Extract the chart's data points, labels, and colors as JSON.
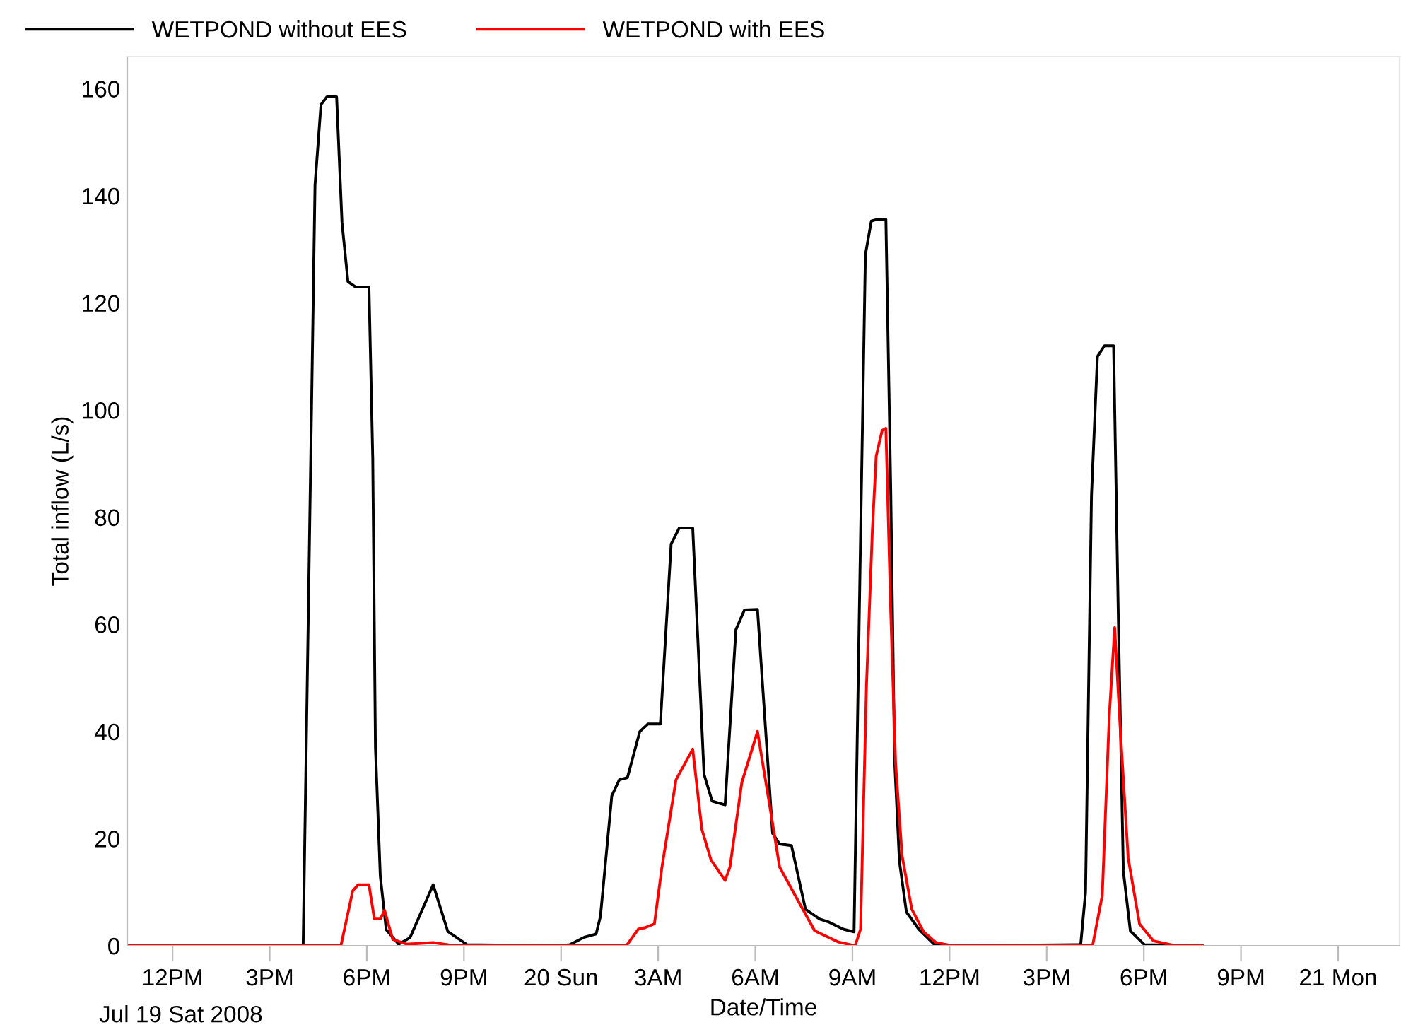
{
  "chart_data": {
    "type": "line",
    "xlabel": "Date/Time",
    "ylabel": "Total inflow (L/s)",
    "xlim": [
      "2008-07-19T10:36",
      "2008-07-21T01:54"
    ],
    "ylim": [
      0,
      166
    ],
    "xticks": [
      {
        "value": "2008-07-19T12:00",
        "label": "12PM"
      },
      {
        "value": "2008-07-19T15:00",
        "label": "3PM"
      },
      {
        "value": "2008-07-19T18:00",
        "label": "6PM"
      },
      {
        "value": "2008-07-19T21:00",
        "label": "9PM"
      },
      {
        "value": "2008-07-20T00:00",
        "label": "20 Sun"
      },
      {
        "value": "2008-07-20T03:00",
        "label": "3AM"
      },
      {
        "value": "2008-07-20T06:00",
        "label": "6AM"
      },
      {
        "value": "2008-07-20T09:00",
        "label": "9AM"
      },
      {
        "value": "2008-07-20T12:00",
        "label": "12PM"
      },
      {
        "value": "2008-07-20T15:00",
        "label": "3PM"
      },
      {
        "value": "2008-07-20T18:00",
        "label": "6PM"
      },
      {
        "value": "2008-07-20T21:00",
        "label": "9PM"
      },
      {
        "value": "2008-07-21T00:00",
        "label": "21 Mon"
      }
    ],
    "yticks": [
      0,
      20,
      40,
      60,
      80,
      100,
      120,
      140,
      160
    ],
    "grid": false,
    "legend": "top",
    "line_style": "solid",
    "marker": "none",
    "annotations": [
      "Jul 19 Sat 2008"
    ],
    "series": [
      {
        "name": "WETPOND without EES",
        "color": "#000000",
        "x": [
          "2008-07-19T10:36",
          "2008-07-19T16:02",
          "2008-07-19T16:24",
          "2008-07-19T16:35",
          "2008-07-19T16:46",
          "2008-07-19T17:04",
          "2008-07-19T17:14",
          "2008-07-19T17:25",
          "2008-07-19T17:39",
          "2008-07-19T18:04",
          "2008-07-19T18:11",
          "2008-07-19T18:16",
          "2008-07-19T18:25",
          "2008-07-19T18:36",
          "2008-07-19T18:59",
          "2008-07-19T19:20",
          "2008-07-19T20:03",
          "2008-07-19T20:30",
          "2008-07-19T21:06",
          "2008-07-20T00:00",
          "2008-07-20T00:16",
          "2008-07-20T00:43",
          "2008-07-20T01:05",
          "2008-07-20T01:13",
          "2008-07-20T01:34",
          "2008-07-20T01:48",
          "2008-07-20T02:03",
          "2008-07-20T02:26",
          "2008-07-20T02:41",
          "2008-07-20T03:04",
          "2008-07-20T03:24",
          "2008-07-20T03:39",
          "2008-07-20T04:04",
          "2008-07-20T04:25",
          "2008-07-20T04:40",
          "2008-07-20T05:04",
          "2008-07-20T05:24",
          "2008-07-20T05:40",
          "2008-07-20T06:04",
          "2008-07-20T06:32",
          "2008-07-20T06:45",
          "2008-07-20T07:07",
          "2008-07-20T07:33",
          "2008-07-20T07:59",
          "2008-07-20T08:17",
          "2008-07-20T08:43",
          "2008-07-20T09:03",
          "2008-07-20T09:15",
          "2008-07-20T09:24",
          "2008-07-20T09:35",
          "2008-07-20T09:46",
          "2008-07-20T10:02",
          "2008-07-20T10:11",
          "2008-07-20T10:18",
          "2008-07-20T10:27",
          "2008-07-20T10:40",
          "2008-07-20T11:03",
          "2008-07-20T11:30",
          "2008-07-20T12:10",
          "2008-07-20T16:03",
          "2008-07-20T16:12",
          "2008-07-20T16:23",
          "2008-07-20T16:34",
          "2008-07-20T16:47",
          "2008-07-20T17:04",
          "2008-07-20T17:13",
          "2008-07-20T17:22",
          "2008-07-20T17:35",
          "2008-07-20T18:01",
          "2008-07-20T19:48"
        ],
        "values": [
          0,
          0,
          142,
          157,
          158.5,
          158.5,
          135,
          124,
          123,
          123,
          91,
          37,
          13,
          3,
          0.3,
          1.5,
          11.4,
          2.7,
          0.2,
          0,
          0.2,
          1.6,
          2.2,
          5.5,
          28,
          31,
          31.4,
          40,
          41.4,
          41.4,
          75,
          78,
          78,
          32,
          27,
          26.3,
          59,
          62.7,
          62.8,
          21,
          19,
          18.7,
          6.8,
          5,
          4.4,
          3.1,
          2.6,
          76,
          129,
          135.3,
          135.6,
          135.6,
          85,
          35,
          15.8,
          6.3,
          3.1,
          0.4,
          0,
          0.2,
          10,
          84,
          110,
          112,
          112,
          60,
          14,
          2.8,
          0.2,
          0
        ]
      },
      {
        "name": "WETPOND with EES",
        "color": "#ff0000",
        "x": [
          "2008-07-19T10:36",
          "2008-07-19T17:12",
          "2008-07-19T17:34",
          "2008-07-19T17:44",
          "2008-07-19T18:04",
          "2008-07-19T18:14",
          "2008-07-19T18:25",
          "2008-07-19T18:33",
          "2008-07-19T18:48",
          "2008-07-19T19:14",
          "2008-07-19T20:03",
          "2008-07-19T20:36",
          "2008-07-20T02:01",
          "2008-07-20T02:23",
          "2008-07-20T02:36",
          "2008-07-20T02:53",
          "2008-07-20T03:07",
          "2008-07-20T03:33",
          "2008-07-20T04:04",
          "2008-07-20T04:21",
          "2008-07-20T04:38",
          "2008-07-20T05:04",
          "2008-07-20T05:13",
          "2008-07-20T05:35",
          "2008-07-20T06:04",
          "2008-07-20T06:28",
          "2008-07-20T06:45",
          "2008-07-20T07:16",
          "2008-07-20T07:50",
          "2008-07-20T08:34",
          "2008-07-20T09:05",
          "2008-07-20T09:15",
          "2008-07-20T09:26",
          "2008-07-20T09:37",
          "2008-07-20T09:44",
          "2008-07-20T09:55",
          "2008-07-20T10:02",
          "2008-07-20T10:11",
          "2008-07-20T10:20",
          "2008-07-20T10:32",
          "2008-07-20T10:50",
          "2008-07-20T11:12",
          "2008-07-20T11:35",
          "2008-07-20T12:00",
          "2008-07-20T16:25",
          "2008-07-20T16:43",
          "2008-07-20T16:56",
          "2008-07-20T17:06",
          "2008-07-20T17:16",
          "2008-07-20T17:31",
          "2008-07-20T17:52",
          "2008-07-20T18:18",
          "2008-07-20T18:54",
          "2008-07-20T19:48"
        ],
        "values": [
          0,
          0,
          10.3,
          11.4,
          11.4,
          5,
          5,
          6.6,
          1.2,
          0.3,
          0.6,
          0.1,
          0,
          3.1,
          3.4,
          4.1,
          14.7,
          31,
          36.7,
          21.7,
          16,
          12.2,
          14.7,
          30.5,
          40,
          25.3,
          14.7,
          9,
          2.8,
          0.7,
          0,
          3.1,
          48.6,
          77.7,
          91.4,
          96.2,
          96.6,
          62.3,
          34,
          16.8,
          6.8,
          2.6,
          0.6,
          0.1,
          0,
          9.4,
          42.9,
          59.4,
          41.1,
          16.4,
          4.1,
          0.9,
          0.1,
          0
        ]
      }
    ]
  }
}
